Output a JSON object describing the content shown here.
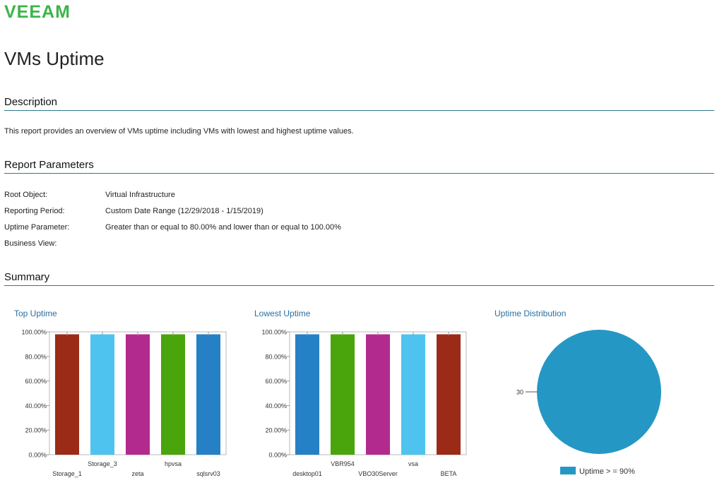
{
  "brand": {
    "logo_text": "VEEAM",
    "color": "#3bb54a"
  },
  "page": {
    "title": "VMs Uptime"
  },
  "description": {
    "heading": "Description",
    "text": "This report provides an overview of VMs uptime including VMs with lowest and highest uptime values."
  },
  "parameters": {
    "heading": "Report Parameters",
    "rows": [
      {
        "label": "Root Object:",
        "value": "Virtual Infrastructure"
      },
      {
        "label": "Reporting Period:",
        "value": "Custom Date Range (12/29/2018 - 1/15/2019)"
      },
      {
        "label": "Uptime Parameter:",
        "value": "Greater than or equal to 80.00% and lower than or equal to 100.00%"
      },
      {
        "label": "Business View:",
        "value": ""
      }
    ]
  },
  "summary": {
    "heading": "Summary"
  },
  "accent_colors": {
    "rule": "#2d7a86",
    "chart_title": "#2a6fa1"
  },
  "chart_data": [
    {
      "type": "bar",
      "title": "Top Uptime",
      "categories": [
        "Storage_1",
        "Storage_3",
        "zeta",
        "hpvsa",
        "sqlsrv03"
      ],
      "values": [
        98,
        98,
        98,
        98,
        98
      ],
      "colors": [
        "#9b2b17",
        "#4fc3ef",
        "#b22a8e",
        "#4aa40c",
        "#2680c6"
      ],
      "yticks": [
        "0.00%",
        "20.00%",
        "40.00%",
        "60.00%",
        "80.00%",
        "100.00%"
      ],
      "ylim": [
        0,
        100
      ],
      "grid": false
    },
    {
      "type": "bar",
      "title": "Lowest Uptime",
      "categories": [
        "desktop01",
        "VBR954",
        "VBO30Server",
        "vsa",
        "BETA"
      ],
      "values": [
        98,
        98,
        98,
        98,
        98
      ],
      "colors": [
        "#2680c6",
        "#4aa40c",
        "#b22a8e",
        "#4fc3ef",
        "#9b2b17"
      ],
      "yticks": [
        "0.00%",
        "20.00%",
        "40.00%",
        "60.00%",
        "80.00%",
        "100.00%"
      ],
      "ylim": [
        0,
        100
      ],
      "grid": false
    },
    {
      "type": "pie",
      "title": "Uptime Distribution",
      "categories": [
        "Uptime > = 90%"
      ],
      "values": [
        30
      ],
      "data_labels": [
        "30"
      ],
      "colors": [
        "#2597c4"
      ],
      "legend": "bottom"
    }
  ]
}
